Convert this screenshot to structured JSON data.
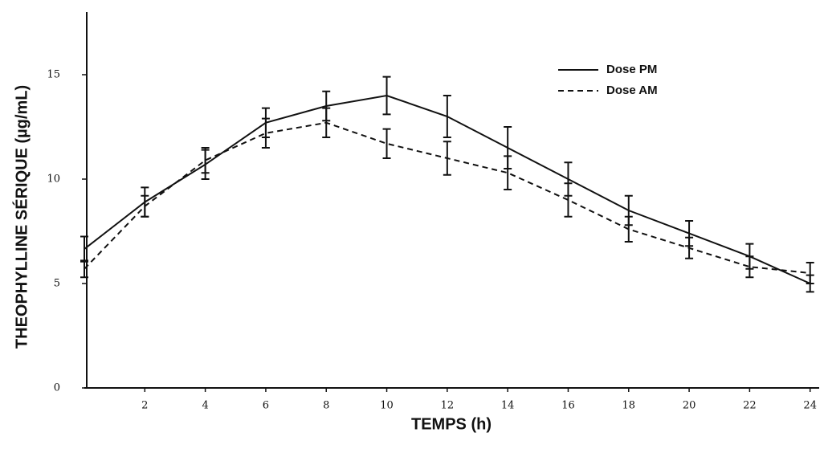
{
  "chart_data": {
    "type": "line",
    "x_label": "TEMPS (h)",
    "y_label": "THEOPHYLLINE SÉRIQUE (µg/mL)",
    "x": [
      0,
      2,
      4,
      6,
      8,
      10,
      12,
      14,
      16,
      18,
      20,
      22,
      24
    ],
    "series": [
      {
        "name": "Dose PM",
        "color": "#111111",
        "line_style": "solid",
        "values": [
          6.65,
          8.9,
          10.7,
          12.7,
          13.5,
          14.0,
          13.0,
          11.5,
          10.0,
          8.5,
          7.4,
          6.3,
          5.0
        ],
        "errors": [
          0.6,
          0.7,
          0.7,
          0.7,
          0.7,
          0.9,
          1.0,
          1.0,
          0.8,
          0.7,
          0.6,
          0.6,
          0.4
        ]
      },
      {
        "name": "Dose AM",
        "color": "#111111",
        "line_style": "dashed",
        "values": [
          5.7,
          8.7,
          10.9,
          12.2,
          12.7,
          11.7,
          11.0,
          10.3,
          9.0,
          7.6,
          6.7,
          5.8,
          5.5
        ],
        "errors": [
          0.4,
          0.5,
          0.6,
          0.7,
          0.7,
          0.7,
          0.8,
          0.8,
          0.8,
          0.6,
          0.5,
          0.5,
          0.5
        ]
      }
    ],
    "xlim": [
      0,
      24.3
    ],
    "xticks": [
      2,
      4,
      6,
      8,
      10,
      12,
      14,
      16,
      18,
      20,
      22,
      24
    ],
    "ylim": [
      0,
      18
    ],
    "yticks": [
      0,
      5,
      10,
      15
    ],
    "grid": false,
    "legend": "top-right"
  }
}
